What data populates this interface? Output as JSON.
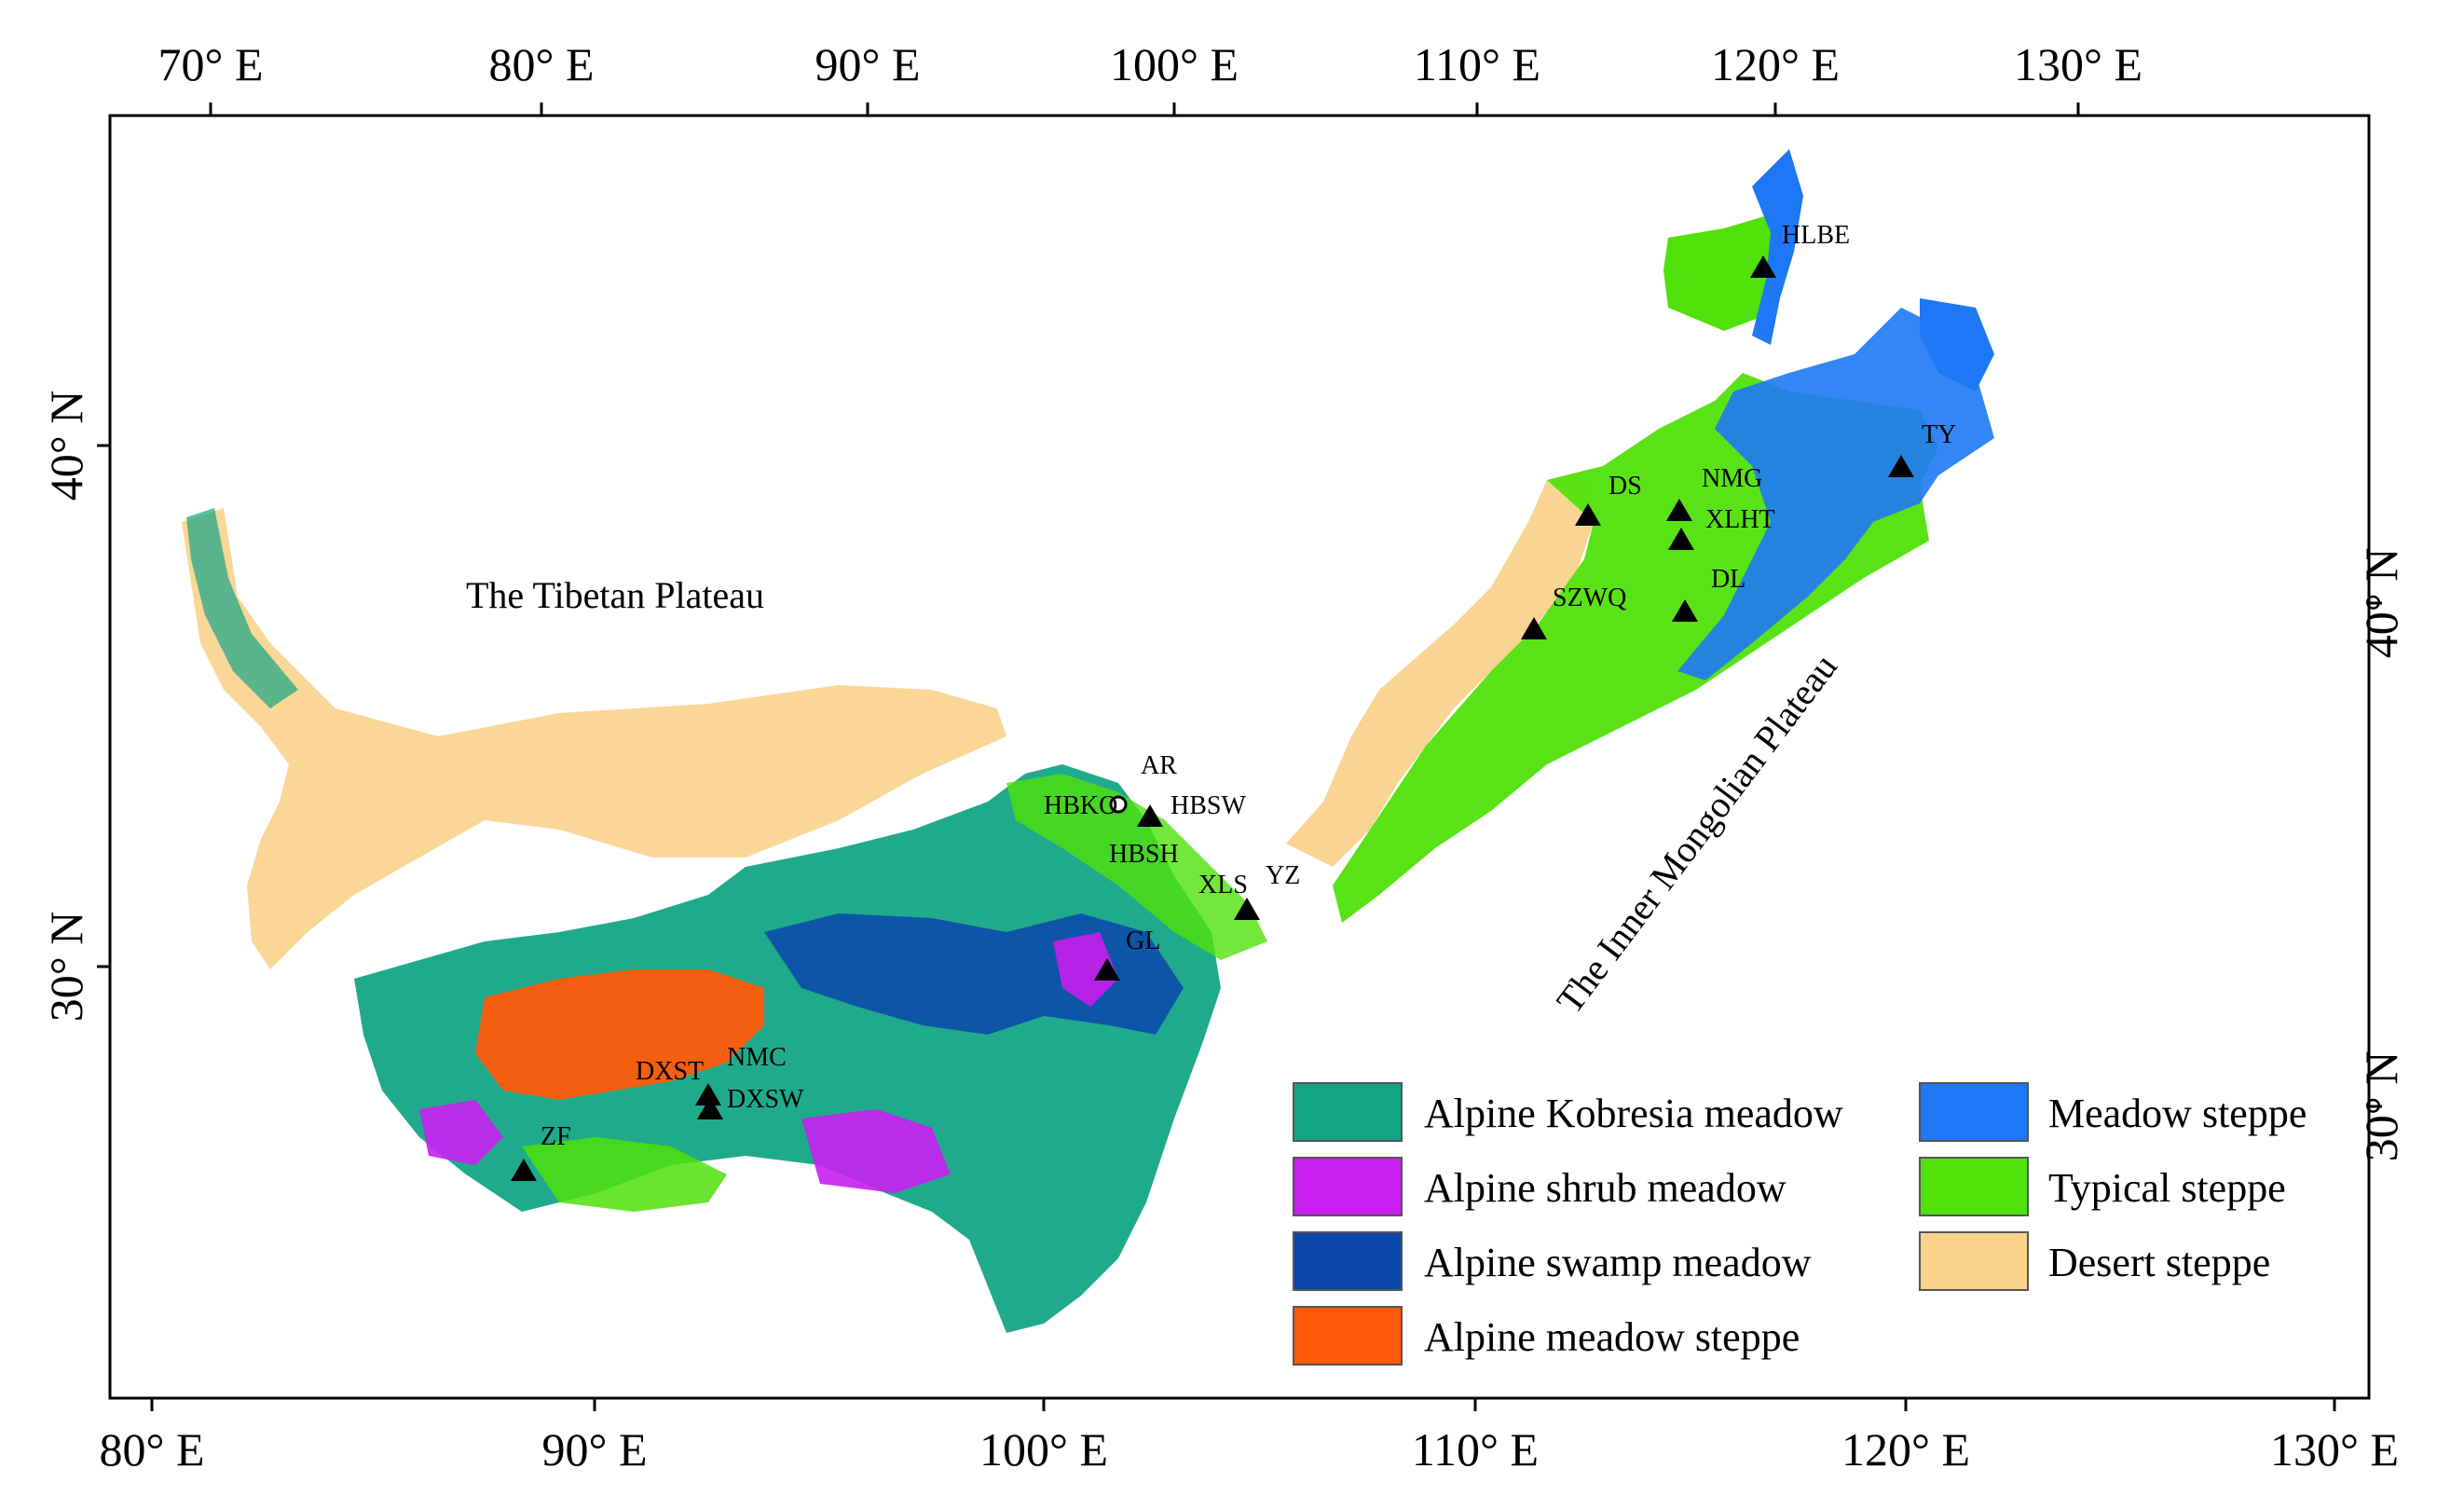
{
  "top_axis": {
    "labels": [
      "70° E",
      "80° E",
      "90° E",
      "100° E",
      "110° E",
      "120° E",
      "130° E"
    ]
  },
  "bottom_axis": {
    "labels": [
      "80° E",
      "90° E",
      "100° E",
      "110° E",
      "120° E",
      "130° E"
    ]
  },
  "left_axis": {
    "labels": [
      "40° N",
      "30° N"
    ]
  },
  "right_axis": {
    "labels": [
      "40° N",
      "30° N"
    ]
  },
  "regions": {
    "tibet": "The Tibetan Plateau",
    "mongolia": "The Inner Mongolian Plateau"
  },
  "stations": [
    {
      "name": "HLBE",
      "marker": "triangle"
    },
    {
      "name": "TY",
      "marker": "triangle"
    },
    {
      "name": "DS",
      "marker": "triangle"
    },
    {
      "name": "NMG",
      "marker": "triangle"
    },
    {
      "name": "XLHT",
      "marker": "triangle"
    },
    {
      "name": "DL",
      "marker": "triangle"
    },
    {
      "name": "SZWQ",
      "marker": "triangle"
    },
    {
      "name": "AR",
      "marker": "triangle"
    },
    {
      "name": "HBKO",
      "marker": "circle"
    },
    {
      "name": "HBSW",
      "marker": "triangle"
    },
    {
      "name": "HBSH",
      "marker": "triangle"
    },
    {
      "name": "XLS",
      "marker": "triangle"
    },
    {
      "name": "YZ",
      "marker": "triangle"
    },
    {
      "name": "GL",
      "marker": "triangle"
    },
    {
      "name": "DXST",
      "marker": "triangle"
    },
    {
      "name": "NMC",
      "marker": "triangle"
    },
    {
      "name": "DXSW",
      "marker": "triangle"
    },
    {
      "name": "ZF",
      "marker": "triangle"
    }
  ],
  "legend": [
    {
      "label": "Alpine Kobresia meadow",
      "color": "#14a586"
    },
    {
      "label": "Alpine shrub meadow",
      "color": "#c81ef0"
    },
    {
      "label": "Alpine swamp meadow",
      "color": "#0a46aa"
    },
    {
      "label": "Alpine meadow steppe",
      "color": "#ff5a0a"
    },
    {
      "label": "Meadow steppe",
      "color": "#1e78f5"
    },
    {
      "label": "Typical steppe",
      "color": "#50e10a"
    },
    {
      "label": "Desert steppe",
      "color": "#fad28c"
    }
  ]
}
